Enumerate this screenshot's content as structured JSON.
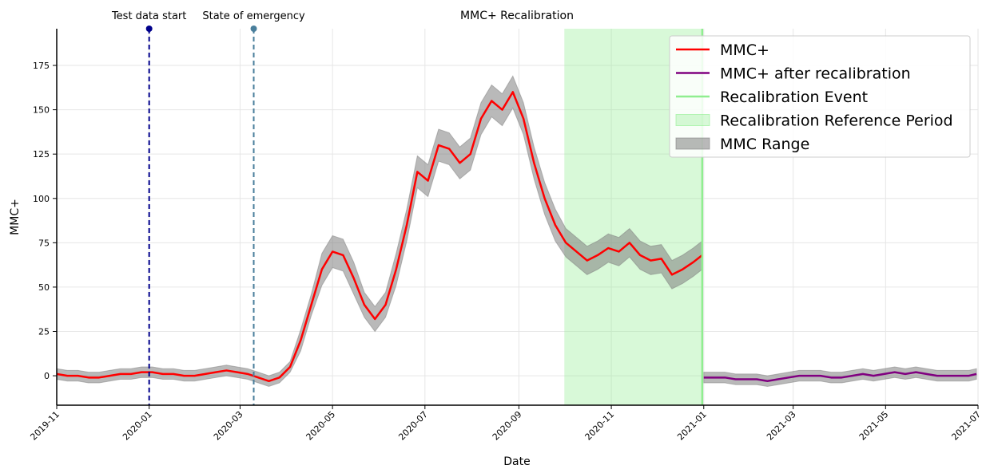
{
  "chart_data": {
    "type": "line",
    "title": "MMC+ Recalibration",
    "x_label": "Date",
    "y_label": "MMC+",
    "xlim": [
      "2019-11",
      "2021-07"
    ],
    "xticks": [
      "2019-11",
      "2020-01",
      "2020-03",
      "2020-05",
      "2020-07",
      "2020-09",
      "2020-11",
      "2021-01",
      "2021-03",
      "2021-05",
      "2021-07"
    ],
    "ylim": [
      -16.6,
      195.7
    ],
    "yticks": [
      0,
      25,
      50,
      75,
      100,
      125,
      150,
      175
    ],
    "grid": true,
    "legend": "upper right",
    "range_name": "MMC Range",
    "range_color": "#808080",
    "series": [
      {
        "name": "MMC+",
        "color": "#ff0000",
        "x": [
          "2019-11-01",
          "2019-11-08",
          "2019-11-15",
          "2019-11-22",
          "2019-11-29",
          "2019-12-06",
          "2019-12-13",
          "2019-12-20",
          "2019-12-27",
          "2020-01-03",
          "2020-01-10",
          "2020-01-17",
          "2020-01-24",
          "2020-01-31",
          "2020-02-07",
          "2020-02-14",
          "2020-02-21",
          "2020-02-28",
          "2020-03-06",
          "2020-03-13",
          "2020-03-20",
          "2020-03-27",
          "2020-04-03",
          "2020-04-10",
          "2020-04-17",
          "2020-04-24",
          "2020-05-01",
          "2020-05-08",
          "2020-05-15",
          "2020-05-22",
          "2020-05-29",
          "2020-06-05",
          "2020-06-12",
          "2020-06-19",
          "2020-06-26",
          "2020-07-03",
          "2020-07-10",
          "2020-07-17",
          "2020-07-24",
          "2020-07-31",
          "2020-08-07",
          "2020-08-14",
          "2020-08-21",
          "2020-08-28",
          "2020-09-04",
          "2020-09-11",
          "2020-09-18",
          "2020-09-25",
          "2020-10-02",
          "2020-10-09",
          "2020-10-16",
          "2020-10-23",
          "2020-10-30",
          "2020-11-06",
          "2020-11-13",
          "2020-11-20",
          "2020-11-27",
          "2020-12-04",
          "2020-12-11",
          "2020-12-18",
          "2020-12-25",
          "2020-12-31"
        ],
        "values": [
          1,
          0,
          0,
          -1,
          -1,
          0,
          1,
          1,
          2,
          2,
          1,
          1,
          0,
          0,
          1,
          2,
          3,
          2,
          1,
          -1,
          -3,
          -1,
          5,
          20,
          40,
          60,
          70,
          68,
          55,
          40,
          32,
          40,
          60,
          85,
          115,
          110,
          130,
          128,
          120,
          125,
          145,
          155,
          150,
          160,
          145,
          120,
          100,
          85,
          75,
          70,
          65,
          68,
          72,
          70,
          75,
          68,
          65,
          66,
          57,
          60,
          64,
          68
        ],
        "lower": [
          -2,
          -3,
          -3,
          -4,
          -4,
          -3,
          -2,
          -2,
          -1,
          -1,
          -2,
          -2,
          -3,
          -3,
          -2,
          -1,
          0,
          -1,
          -2,
          -4,
          -6,
          -4,
          2,
          14,
          34,
          51,
          61,
          59,
          46,
          33,
          25,
          33,
          51,
          76,
          106,
          101,
          121,
          119,
          111,
          116,
          136,
          146,
          141,
          151,
          136,
          111,
          91,
          76,
          67,
          62,
          57,
          60,
          64,
          62,
          67,
          60,
          57,
          58,
          49,
          52,
          56,
          60
        ],
        "upper": [
          4,
          3,
          3,
          2,
          2,
          3,
          4,
          4,
          5,
          5,
          4,
          4,
          3,
          3,
          4,
          5,
          6,
          5,
          4,
          2,
          0,
          2,
          8,
          26,
          46,
          69,
          79,
          77,
          64,
          47,
          39,
          47,
          69,
          94,
          124,
          119,
          139,
          137,
          129,
          134,
          154,
          164,
          159,
          169,
          154,
          129,
          109,
          94,
          83,
          78,
          73,
          76,
          80,
          78,
          83,
          76,
          73,
          74,
          65,
          68,
          72,
          76
        ]
      },
      {
        "name": "MMC+ after recalibration",
        "color": "#800080",
        "x": [
          "2021-01-01",
          "2021-01-08",
          "2021-01-15",
          "2021-01-22",
          "2021-01-29",
          "2021-02-05",
          "2021-02-12",
          "2021-02-19",
          "2021-02-26",
          "2021-03-05",
          "2021-03-12",
          "2021-03-19",
          "2021-03-26",
          "2021-04-02",
          "2021-04-09",
          "2021-04-16",
          "2021-04-23",
          "2021-04-30",
          "2021-05-07",
          "2021-05-14",
          "2021-05-21",
          "2021-05-28",
          "2021-06-04",
          "2021-06-11",
          "2021-06-18",
          "2021-06-25",
          "2021-06-30"
        ],
        "values": [
          -1,
          -1,
          -1,
          -2,
          -2,
          -2,
          -3,
          -2,
          -1,
          0,
          0,
          0,
          -1,
          -1,
          0,
          1,
          0,
          1,
          2,
          1,
          2,
          1,
          0,
          0,
          0,
          0,
          1
        ],
        "lower": [
          -4,
          -4,
          -4,
          -5,
          -5,
          -5,
          -6,
          -5,
          -4,
          -3,
          -3,
          -3,
          -4,
          -4,
          -3,
          -2,
          -3,
          -2,
          -1,
          -2,
          -1,
          -2,
          -3,
          -3,
          -3,
          -3,
          -2
        ],
        "upper": [
          2,
          2,
          2,
          1,
          1,
          1,
          0,
          1,
          2,
          3,
          3,
          3,
          2,
          2,
          3,
          4,
          3,
          4,
          5,
          4,
          5,
          4,
          3,
          3,
          3,
          3,
          4
        ]
      }
    ],
    "events": [
      {
        "label": "Test data start",
        "x": "2020-01-01",
        "color": "#00008b"
      },
      {
        "label": "State of emergency",
        "x": "2020-03-10",
        "color": "#4a7f9c"
      }
    ],
    "recalibration_event": {
      "name": "Recalibration Event",
      "x": "2020-12-31",
      "color": "#90ee90"
    },
    "reference_period": {
      "name": "Recalibration Reference Period",
      "start": "2020-10-01",
      "end": "2020-12-31",
      "color": "#90ee90"
    }
  }
}
